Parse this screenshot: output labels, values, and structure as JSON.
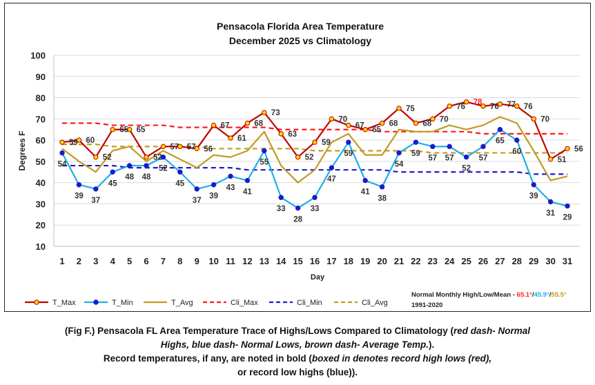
{
  "chart_data": {
    "type": "line",
    "title": "Pensacola Florida Area Temperature",
    "subtitle": "December 2025 vs Climatology",
    "xlabel": "Day",
    "ylabel": "Degrees F",
    "ylim": [
      10,
      100
    ],
    "yticks": [
      10,
      20,
      30,
      40,
      50,
      60,
      70,
      80,
      90,
      100
    ],
    "x": [
      1,
      2,
      3,
      4,
      5,
      6,
      7,
      8,
      9,
      10,
      11,
      12,
      13,
      14,
      15,
      16,
      17,
      18,
      19,
      20,
      21,
      22,
      23,
      24,
      25,
      26,
      27,
      28,
      29,
      30,
      31
    ],
    "grid": true,
    "legend_position": "bottom",
    "series": [
      {
        "name": "T_Max",
        "color": "#c00000",
        "marker": "circle-yellow",
        "style": "solid",
        "values": [
          59,
          60,
          52,
          65,
          65,
          52,
          57,
          57,
          56,
          67,
          61,
          68,
          73,
          63,
          52,
          59,
          70,
          67,
          65,
          68,
          75,
          68,
          70,
          76,
          78,
          76,
          77,
          76,
          70,
          51,
          56
        ]
      },
      {
        "name": "T_Min",
        "color": "#1eaee8",
        "marker": "circle-blue",
        "style": "solid",
        "values": [
          54,
          39,
          37,
          45,
          48,
          48,
          52,
          45,
          37,
          39,
          43,
          41,
          55,
          33,
          28,
          33,
          47,
          59,
          41,
          38,
          54,
          59,
          57,
          57,
          52,
          57,
          65,
          60,
          39,
          31,
          29
        ]
      },
      {
        "name": "T_Avg",
        "color": "#c09a20",
        "marker": "none",
        "style": "solid",
        "values": [
          56,
          50,
          45,
          55,
          57,
          50,
          55,
          51,
          47,
          53,
          52,
          55,
          64,
          48,
          40,
          46,
          59,
          63,
          53,
          53,
          65,
          64,
          64,
          67,
          65,
          67,
          71,
          68,
          55,
          41,
          43
        ]
      },
      {
        "name": "Cli_Max",
        "color": "#ff1a1a",
        "marker": "none",
        "style": "dash",
        "values": [
          68,
          68,
          68,
          67,
          67,
          67,
          67,
          66,
          66,
          66,
          66,
          66,
          66,
          65,
          65,
          65,
          65,
          65,
          65,
          64,
          64,
          64,
          64,
          64,
          64,
          63,
          63,
          63,
          63,
          63,
          63
        ]
      },
      {
        "name": "Cli_Min",
        "color": "#1a1acc",
        "marker": "none",
        "style": "dash",
        "values": [
          48,
          48,
          48,
          48,
          47,
          47,
          47,
          47,
          47,
          47,
          47,
          46,
          46,
          46,
          46,
          46,
          46,
          46,
          46,
          46,
          45,
          45,
          45,
          45,
          45,
          45,
          45,
          45,
          44,
          44,
          44
        ]
      },
      {
        "name": "Cli_Avg",
        "color": "#c09a20",
        "marker": "none",
        "style": "dash",
        "values": [
          58,
          58,
          58,
          57,
          57,
          57,
          57,
          57,
          57,
          56,
          56,
          56,
          56,
          56,
          56,
          55,
          55,
          55,
          55,
          55,
          55,
          55,
          54,
          54,
          54,
          54,
          54,
          54,
          54,
          54,
          54
        ]
      }
    ],
    "labels_max": [
      "59",
      "60",
      "52",
      "65",
      "65",
      "52",
      "57",
      "57",
      "56",
      "67",
      "61",
      "68",
      "73",
      "63",
      "52",
      "59",
      "70",
      "67",
      "65",
      "68",
      "75",
      "68",
      "70",
      "76",
      "78",
      "76",
      "77",
      "76",
      "70",
      "51",
      "56"
    ],
    "labels_min": [
      "54",
      "39",
      "37",
      "45",
      "48",
      "48",
      "52",
      "45",
      "37",
      "39",
      "43",
      "41",
      "55",
      "33",
      "28",
      "33",
      "47",
      "59",
      "41",
      "38",
      "54",
      "59",
      "57",
      "57",
      "52",
      "57",
      "65",
      "60",
      "39",
      "31",
      "29"
    ],
    "record_days_max": [
      25
    ],
    "normals_note": {
      "prefix": "Normal Monthly High/Low/Mean - ",
      "high": "65.1°",
      "sep1": "/",
      "low": "45.9°",
      "sep2": "/",
      "mean": "55.5°",
      "period": "1991-2020"
    }
  },
  "caption": {
    "line1_a": "(Fig F.) Pensacola FL Area Temperature Trace of Highs/Lows Compared to Climatology (",
    "line1_i": "red dash- Normal",
    "line2_i": "Highs, blue dash- Normal Lows, brown dash- Average Temp.",
    "line2_b": ").",
    "line3_a": "Record temperatures, if any, are noted in bold (",
    "line3_i": "boxed in denotes record high lows (red),",
    "line4_a": "or record low highs (blue)",
    "line4_b": ")."
  }
}
